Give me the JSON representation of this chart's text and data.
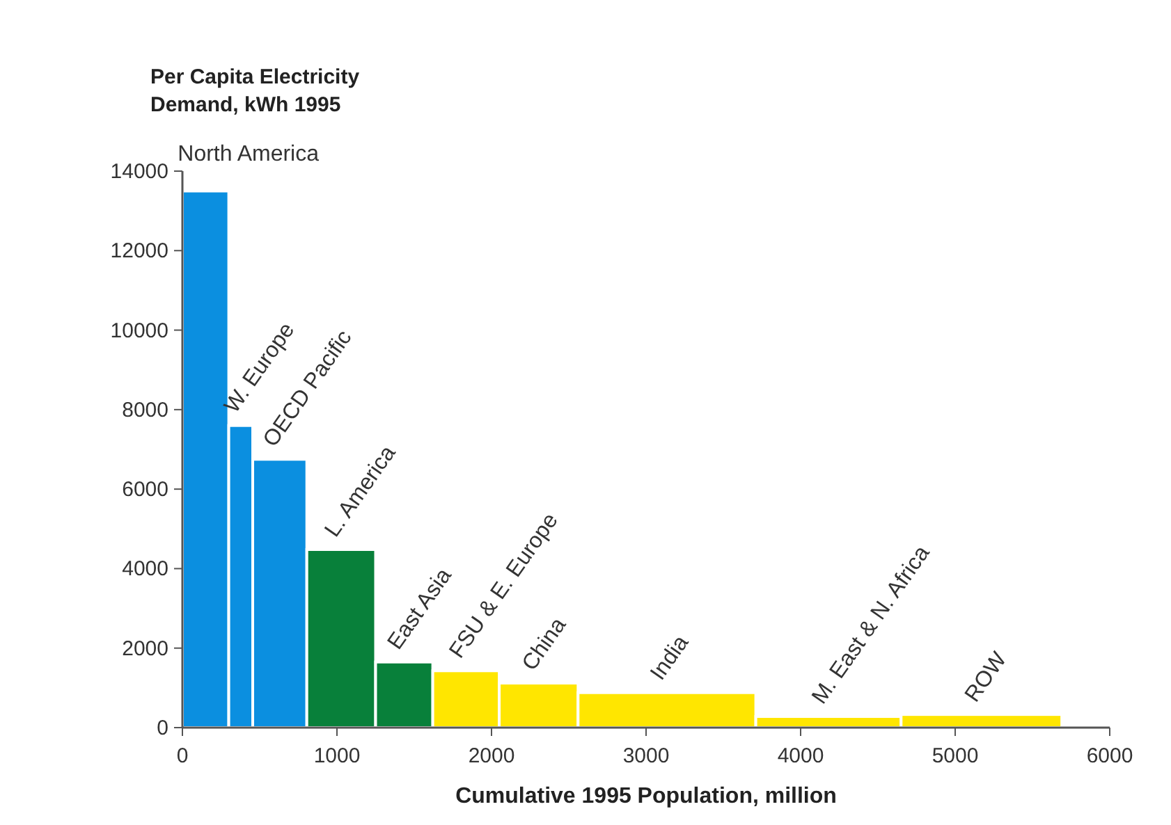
{
  "chart_data": {
    "type": "histogram",
    "ylabel": "Per Capita Electricity\nDemand, kWh 1995",
    "xlabel": "Cumulative 1995 Population, million",
    "bins": [
      0,
      300,
      455,
      805,
      1250,
      1620,
      2050,
      2560,
      3710,
      4650,
      5690
    ],
    "values": [
      13500,
      7600,
      6750,
      4480,
      1650,
      1430,
      1120,
      880,
      280,
      330
    ],
    "colors": [
      "#0b8fe0",
      "#0b8fe0",
      "#0b8fe0",
      "#08803a",
      "#08803a",
      "#ffe600",
      "#ffe600",
      "#ffe600",
      "#ffe600",
      "#ffe600"
    ],
    "xlim": [
      0,
      6000
    ],
    "xticks": [
      0,
      1000,
      2000,
      3000,
      4000,
      5000,
      6000
    ],
    "ylim": [
      0,
      14000
    ],
    "yticks": [
      0,
      2000,
      4000,
      6000,
      8000,
      10000,
      12000,
      14000
    ],
    "annotations": [
      {
        "text": "North America",
        "x": 150,
        "y": 13500
      },
      {
        "text": "W. Europe",
        "x": 378,
        "y": 7600
      },
      {
        "text": "OECD Pacific",
        "x": 630,
        "y": 6750
      },
      {
        "text": "L. America",
        "x": 1028,
        "y": 4480
      },
      {
        "text": "East Asia",
        "x": 1435,
        "y": 1650
      },
      {
        "text": "FSU & E. Europe",
        "x": 1835,
        "y": 1430
      },
      {
        "text": "China",
        "x": 2305,
        "y": 1120
      },
      {
        "text": "India",
        "x": 3135,
        "y": 880
      },
      {
        "text": "M. East & N. Africa",
        "x": 4180,
        "y": 280
      },
      {
        "text": "ROW",
        "x": 5170,
        "y": 330
      }
    ]
  }
}
